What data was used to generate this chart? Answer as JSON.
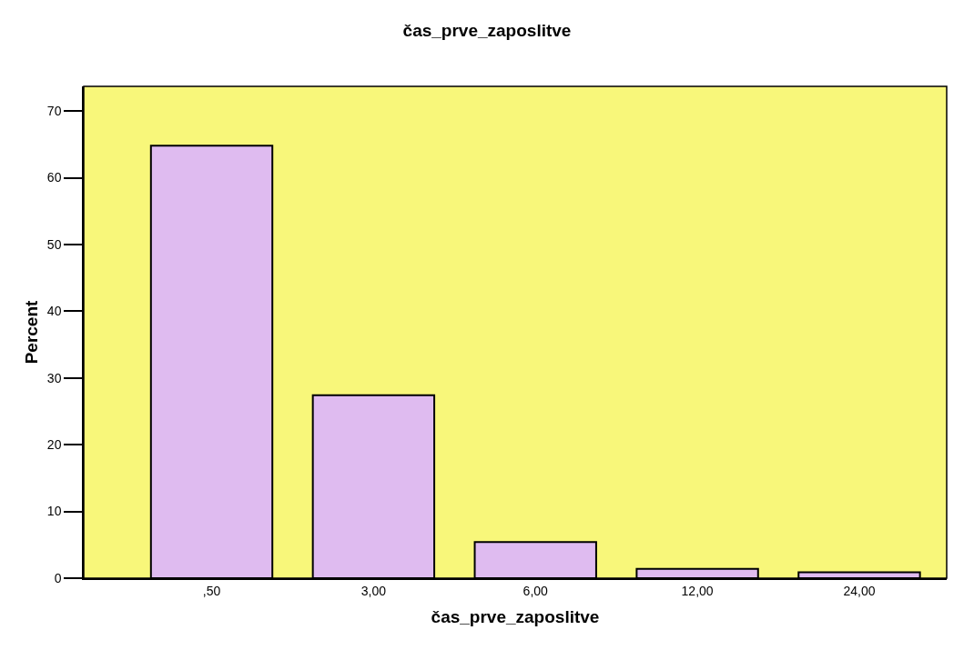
{
  "chart_data": {
    "type": "bar",
    "title": "čas_prve_zaposlitve",
    "xlabel": "čas_prve_zaposlitve",
    "ylabel": "Percent",
    "categories": [
      ",50",
      "3,00",
      "6,00",
      "12,00",
      "24,00"
    ],
    "values": [
      64.8,
      27.4,
      5.4,
      1.4,
      0.9
    ],
    "color": "#dfbbf0",
    "ylim": [
      0,
      73.7
    ],
    "yticks": [
      0,
      10,
      20,
      30,
      40,
      50,
      60,
      70
    ],
    "grid": false
  }
}
